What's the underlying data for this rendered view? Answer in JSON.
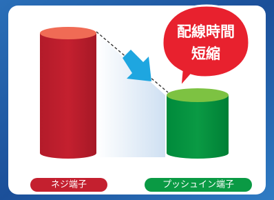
{
  "callout": {
    "lines": [
      "配線時間",
      "短縮"
    ]
  },
  "labels": {
    "screw": "ネジ端子",
    "push_in": "プッシュイン端子"
  }
}
